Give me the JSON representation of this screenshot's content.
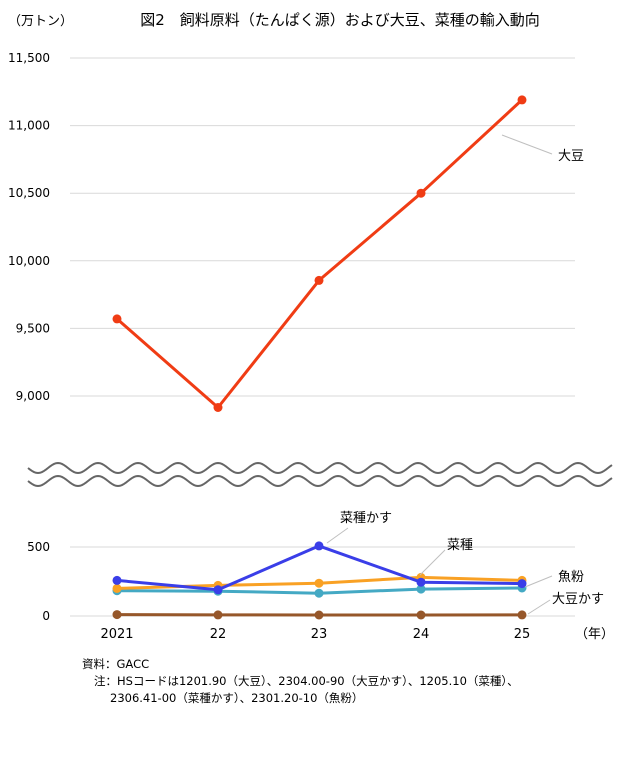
{
  "chart_data": {
    "type": "line",
    "title": "図2　飼料原料（たんぱく源）および大豆、菜種の輸入動向",
    "ylabel": "（万トン）",
    "xlabel": "（年）",
    "categories": [
      "2021",
      "22",
      "23",
      "24",
      "25"
    ],
    "upper_axis": {
      "ylim": [
        8800,
        11500
      ],
      "ticks": [
        "9,000",
        "9,500",
        "10,000",
        "10,500",
        "11,000",
        "11,500"
      ]
    },
    "lower_axis": {
      "ylim": [
        0,
        600
      ],
      "ticks": [
        "0",
        "500"
      ]
    },
    "grid": true,
    "axis_break": true,
    "series": [
      {
        "name": "大豆",
        "color": "#f03c14",
        "axis": "upper",
        "values": [
          9570,
          8915,
          9855,
          10500,
          11190
        ]
      },
      {
        "name": "菜種かす",
        "color": "#3a3ee8",
        "axis": "lower",
        "values": [
          258,
          190,
          508,
          245,
          235
        ]
      },
      {
        "name": "菜種",
        "color": "#f9a124",
        "axis": "lower",
        "values": [
          200,
          222,
          238,
          280,
          258
        ]
      },
      {
        "name": "魚粉",
        "color": "#44a9c4",
        "axis": "lower",
        "values": [
          183,
          180,
          165,
          195,
          203
        ]
      },
      {
        "name": "大豆かす",
        "color": "#96572a",
        "axis": "lower",
        "values": [
          10,
          8,
          7,
          7,
          8
        ]
      }
    ]
  },
  "notes": {
    "source": "資料：GACC",
    "note_line1": "注：HSコードは1201.90（大豆）、2304.00-90（大豆かす）、1205.10（菜種）、",
    "note_line2": "2306.41-00（菜種かす）、2301.20-10（魚粉）"
  }
}
